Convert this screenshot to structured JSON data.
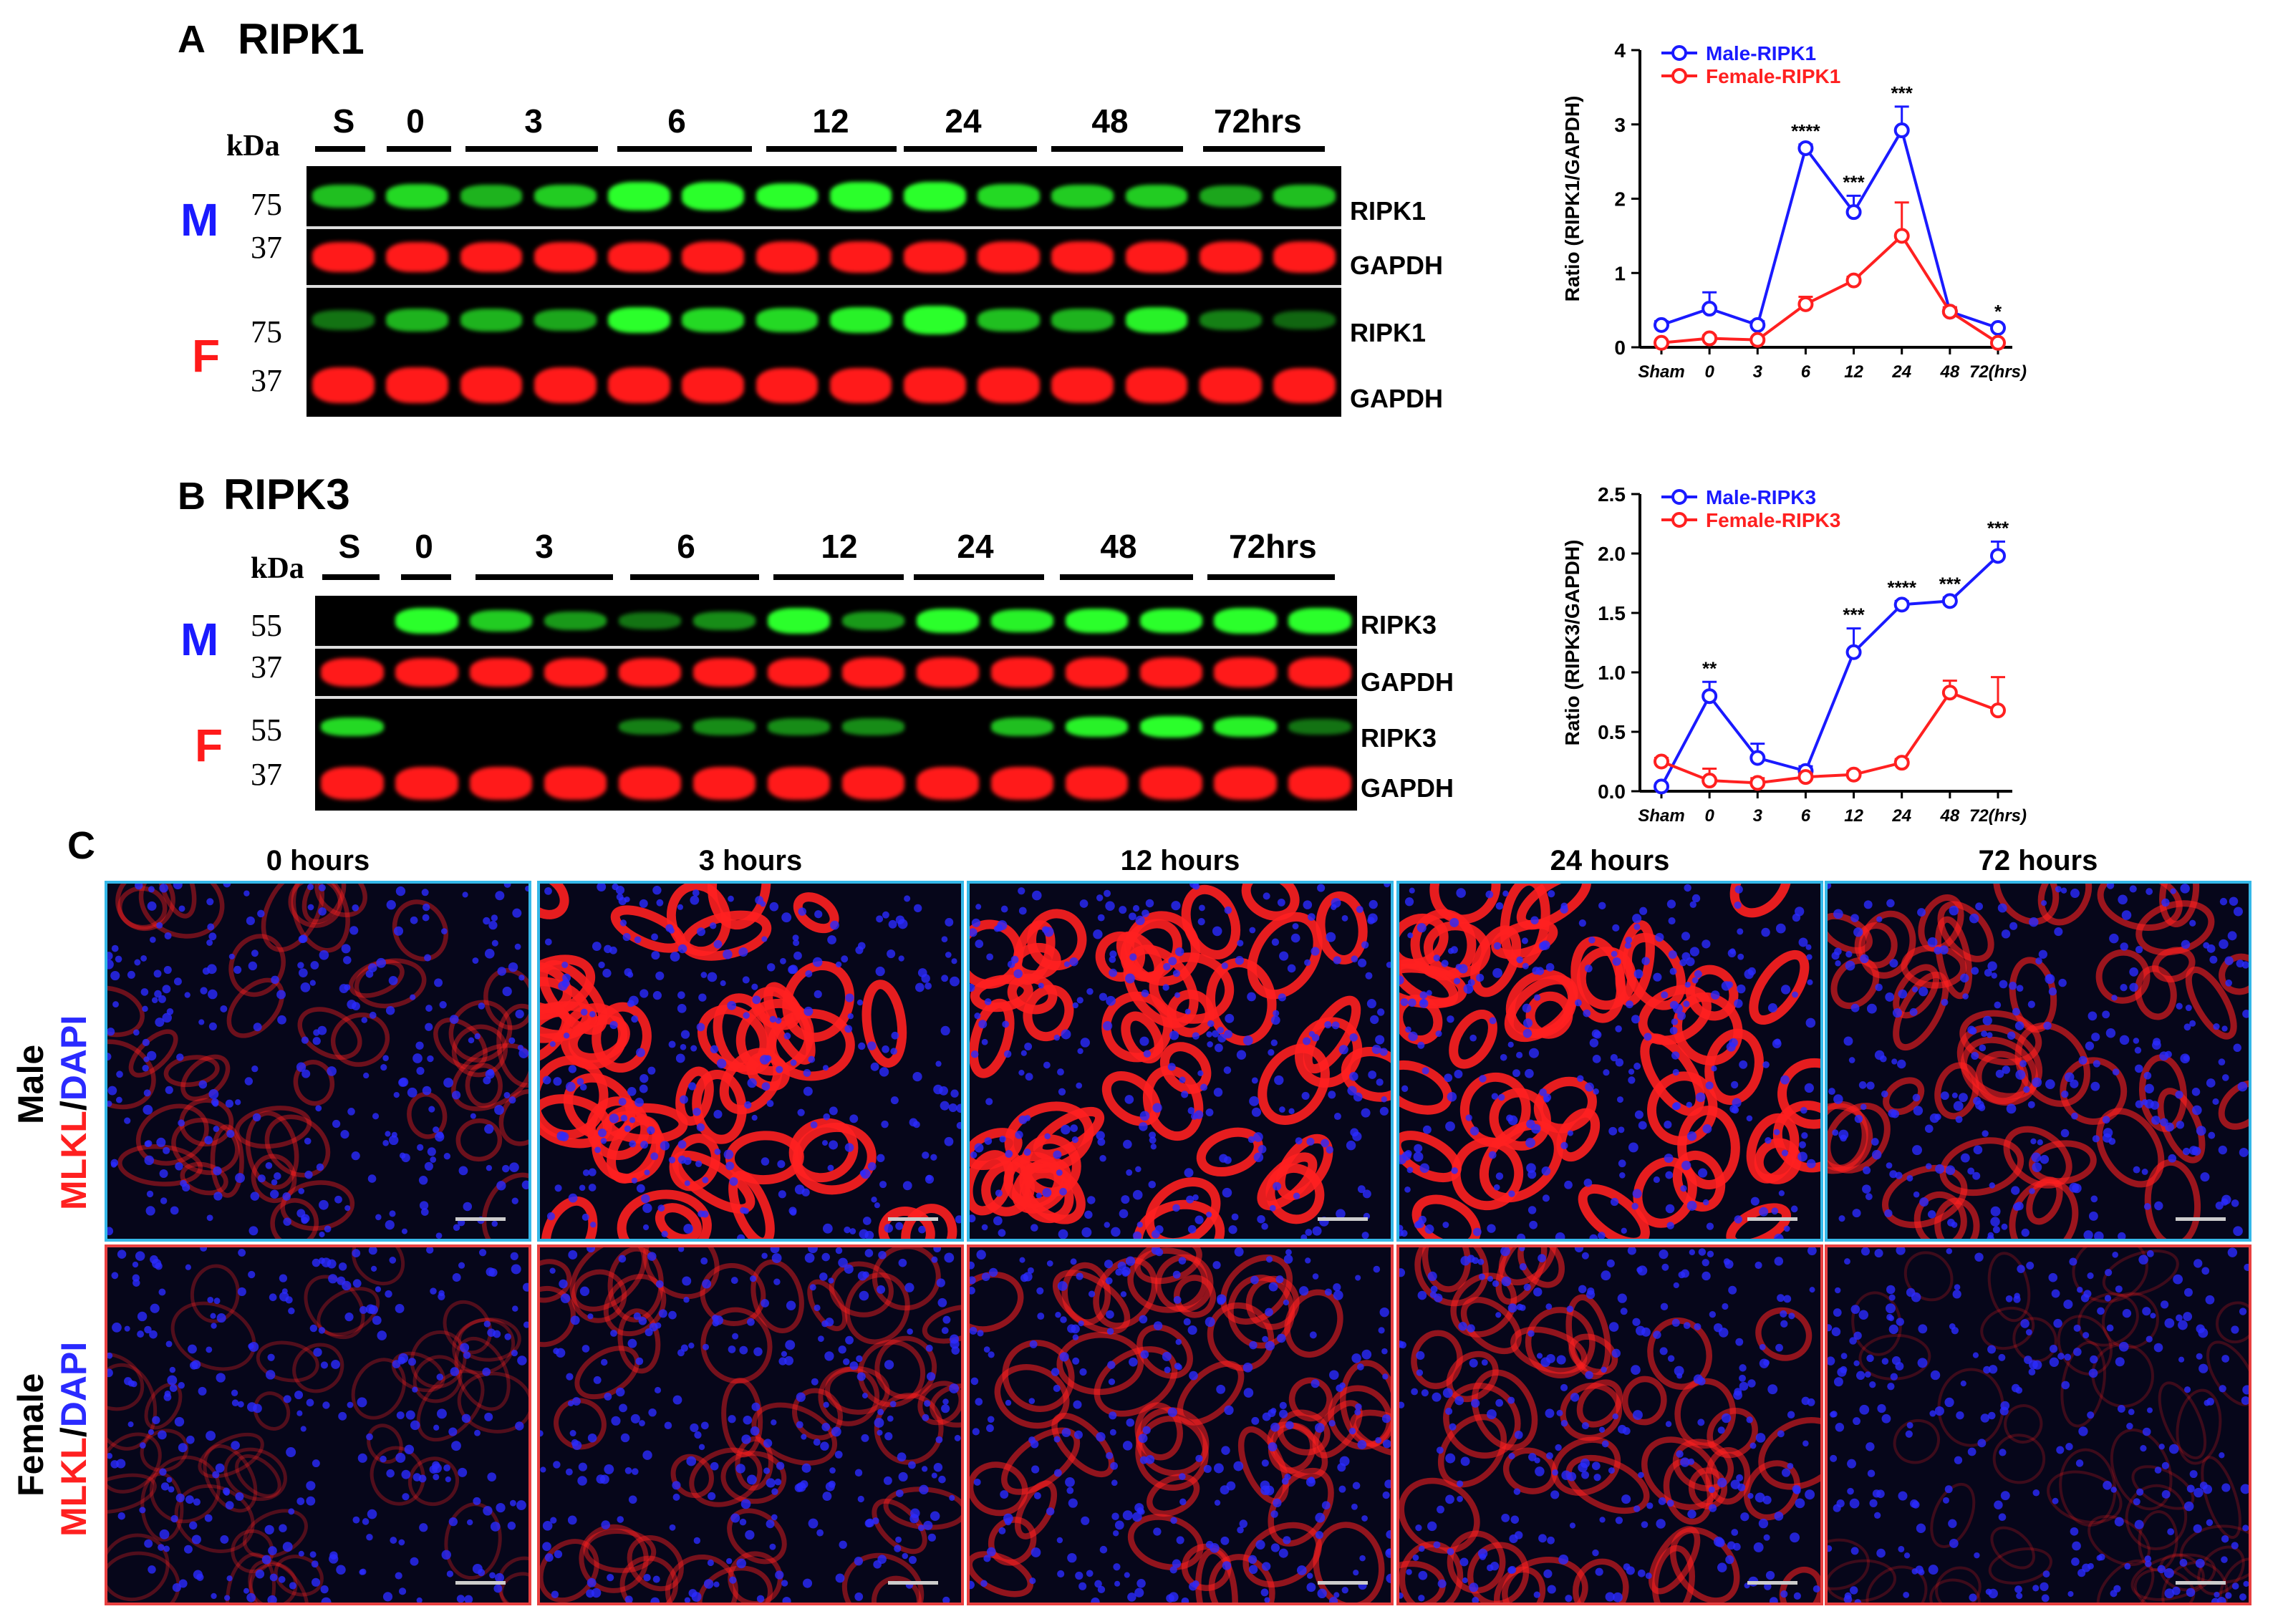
{
  "panel_a": {
    "letter": "A",
    "title": "RIPK1",
    "kda": "kDa",
    "lanes": [
      "S",
      "0",
      "3",
      "6",
      "12",
      "24",
      "48",
      "72hrs"
    ],
    "male_label": "M",
    "female_label": "F",
    "mw_top": "75",
    "mw_bottom": "37",
    "band_target": "RIPK1",
    "band_control": "GAPDH"
  },
  "panel_b": {
    "letter": "B",
    "title": "RIPK3",
    "kda": "kDa",
    "lanes": [
      "S",
      "0",
      "3",
      "6",
      "12",
      "24",
      "48",
      "72hrs"
    ],
    "male_label": "M",
    "female_label": "F",
    "mw_top": "55",
    "mw_bottom": "37",
    "band_target": "RIPK3",
    "band_control": "GAPDH"
  },
  "panel_c": {
    "letter": "C",
    "time_headers": [
      "0 hours",
      "3 hours",
      "12 hours",
      "24 hours",
      "72 hours"
    ],
    "row_male": "Male",
    "row_female": "Female",
    "stain_red": "MLKL",
    "stain_sep": "/",
    "stain_blue": "DAPI",
    "colors": {
      "mlkl": "#ff2020",
      "dapi": "#2a2aff",
      "male_border": "#35b8e8",
      "female_border": "#e84040"
    }
  },
  "chart_data": [
    {
      "type": "line",
      "ylabel": "Ratio (RIPK1/GAPDH)",
      "categories": [
        "Sham",
        "0",
        "3",
        "6",
        "12",
        "24",
        "48",
        "72(hrs)"
      ],
      "ylim": [
        0,
        4
      ],
      "yticks": [
        "0",
        "1",
        "2",
        "3",
        "4"
      ],
      "series": [
        {
          "name": "Male-RIPK1",
          "color": "#1a1aff",
          "values": [
            0.3,
            0.52,
            0.3,
            2.68,
            1.82,
            2.92,
            0.48,
            0.26
          ],
          "errors": [
            0.05,
            0.22,
            0.05,
            0.05,
            0.22,
            0.32,
            0.05,
            0.04
          ]
        },
        {
          "name": "Female-RIPK1",
          "color": "#ff2020",
          "values": [
            0.06,
            0.12,
            0.1,
            0.58,
            0.9,
            1.5,
            0.48,
            0.06
          ],
          "errors": [
            0.03,
            0.04,
            0.03,
            0.1,
            0.05,
            0.45,
            0.06,
            0.02
          ]
        }
      ],
      "significance": [
        "",
        "",
        "",
        "****",
        "***",
        "***",
        "",
        "*"
      ]
    },
    {
      "type": "line",
      "ylabel": "Ratio (RIPK3/GAPDH)",
      "categories": [
        "Sham",
        "0",
        "3",
        "6",
        "12",
        "24",
        "48",
        "72(hrs)"
      ],
      "ylim": [
        0,
        2.5
      ],
      "yticks": [
        "0.0",
        "0.5",
        "1.0",
        "1.5",
        "2.0",
        "2.5"
      ],
      "series": [
        {
          "name": "Male-RIPK3",
          "color": "#1a1aff",
          "values": [
            0.04,
            0.8,
            0.28,
            0.17,
            1.17,
            1.57,
            1.6,
            1.98
          ],
          "errors": [
            0.02,
            0.12,
            0.12,
            0.04,
            0.2,
            0.03,
            0.03,
            0.12
          ]
        },
        {
          "name": "Female-RIPK3",
          "color": "#ff2020",
          "values": [
            0.25,
            0.09,
            0.07,
            0.12,
            0.14,
            0.24,
            0.83,
            0.68
          ],
          "errors": [
            0.03,
            0.1,
            0.04,
            0.03,
            0.03,
            0.03,
            0.1,
            0.28
          ]
        }
      ],
      "significance": [
        "",
        "**",
        "",
        "",
        "***",
        "****",
        "***",
        "***"
      ]
    }
  ]
}
